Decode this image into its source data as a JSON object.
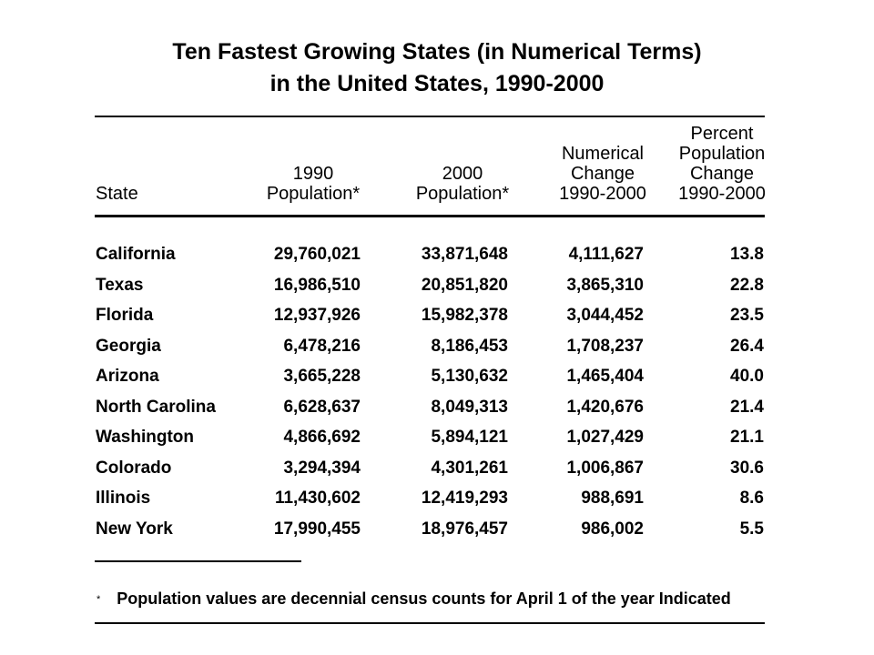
{
  "title": {
    "line1": "Ten Fastest Growing States (in Numerical Terms)",
    "line2": "in the United States, 1990-2000"
  },
  "table": {
    "headers": {
      "state": "State",
      "pop1990": [
        "1990",
        "Population*"
      ],
      "pop2000": [
        "2000",
        "Population*"
      ],
      "numerical": [
        "Numerical",
        "Change",
        "1990-2000"
      ],
      "percent": [
        "Percent",
        "Population",
        "Change",
        "1990-2000"
      ]
    },
    "rows": [
      {
        "state": "California",
        "pop1990": "29,760,021",
        "pop2000": "33,871,648",
        "numerical": "4,111,627",
        "percent": "13.8"
      },
      {
        "state": "Texas",
        "pop1990": "16,986,510",
        "pop2000": "20,851,820",
        "numerical": "3,865,310",
        "percent": "22.8"
      },
      {
        "state": "Florida",
        "pop1990": "12,937,926",
        "pop2000": "15,982,378",
        "numerical": "3,044,452",
        "percent": "23.5"
      },
      {
        "state": "Georgia",
        "pop1990": "6,478,216",
        "pop2000": "8,186,453",
        "numerical": "1,708,237",
        "percent": "26.4"
      },
      {
        "state": "Arizona",
        "pop1990": "3,665,228",
        "pop2000": "5,130,632",
        "numerical": "1,465,404",
        "percent": "40.0"
      },
      {
        "state": "North Carolina",
        "pop1990": "6,628,637",
        "pop2000": "8,049,313",
        "numerical": "1,420,676",
        "percent": "21.4"
      },
      {
        "state": "Washington",
        "pop1990": "4,866,692",
        "pop2000": "5,894,121",
        "numerical": "1,027,429",
        "percent": "21.1"
      },
      {
        "state": "Colorado",
        "pop1990": "3,294,394",
        "pop2000": "4,301,261",
        "numerical": "1,006,867",
        "percent": "30.6"
      },
      {
        "state": "Illinois",
        "pop1990": "11,430,602",
        "pop2000": "12,419,293",
        "numerical": "988,691",
        "percent": "8.6"
      },
      {
        "state": "New York",
        "pop1990": "17,990,455",
        "pop2000": "18,976,457",
        "numerical": "986,002",
        "percent": "5.5"
      }
    ]
  },
  "footnote": {
    "mark": "*",
    "text": "Population values are decennial census counts for April 1 of the year Indicated"
  }
}
